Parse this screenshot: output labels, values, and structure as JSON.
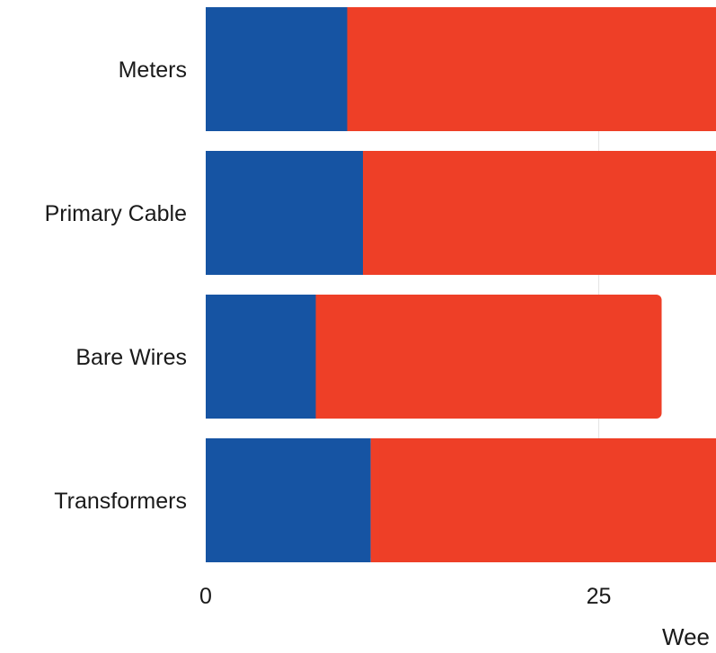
{
  "chart_data": {
    "type": "bar",
    "orientation": "horizontal",
    "stacked": true,
    "categories": [
      "Meters",
      "Primary Cable",
      "Bare Wires",
      "Transformers"
    ],
    "series": [
      {
        "values": [
          9.0,
          10.0,
          7.0,
          10.5
        ],
        "color": "#1654a3"
      },
      {
        "values": [
          24.0,
          23.0,
          22.0,
          22.5
        ],
        "color": "#ee3f27"
      }
    ],
    "x_ticks": [
      0,
      25
    ],
    "xlabel": "Wee",
    "xlim": [
      0,
      32.5
    ],
    "grid": true
  }
}
